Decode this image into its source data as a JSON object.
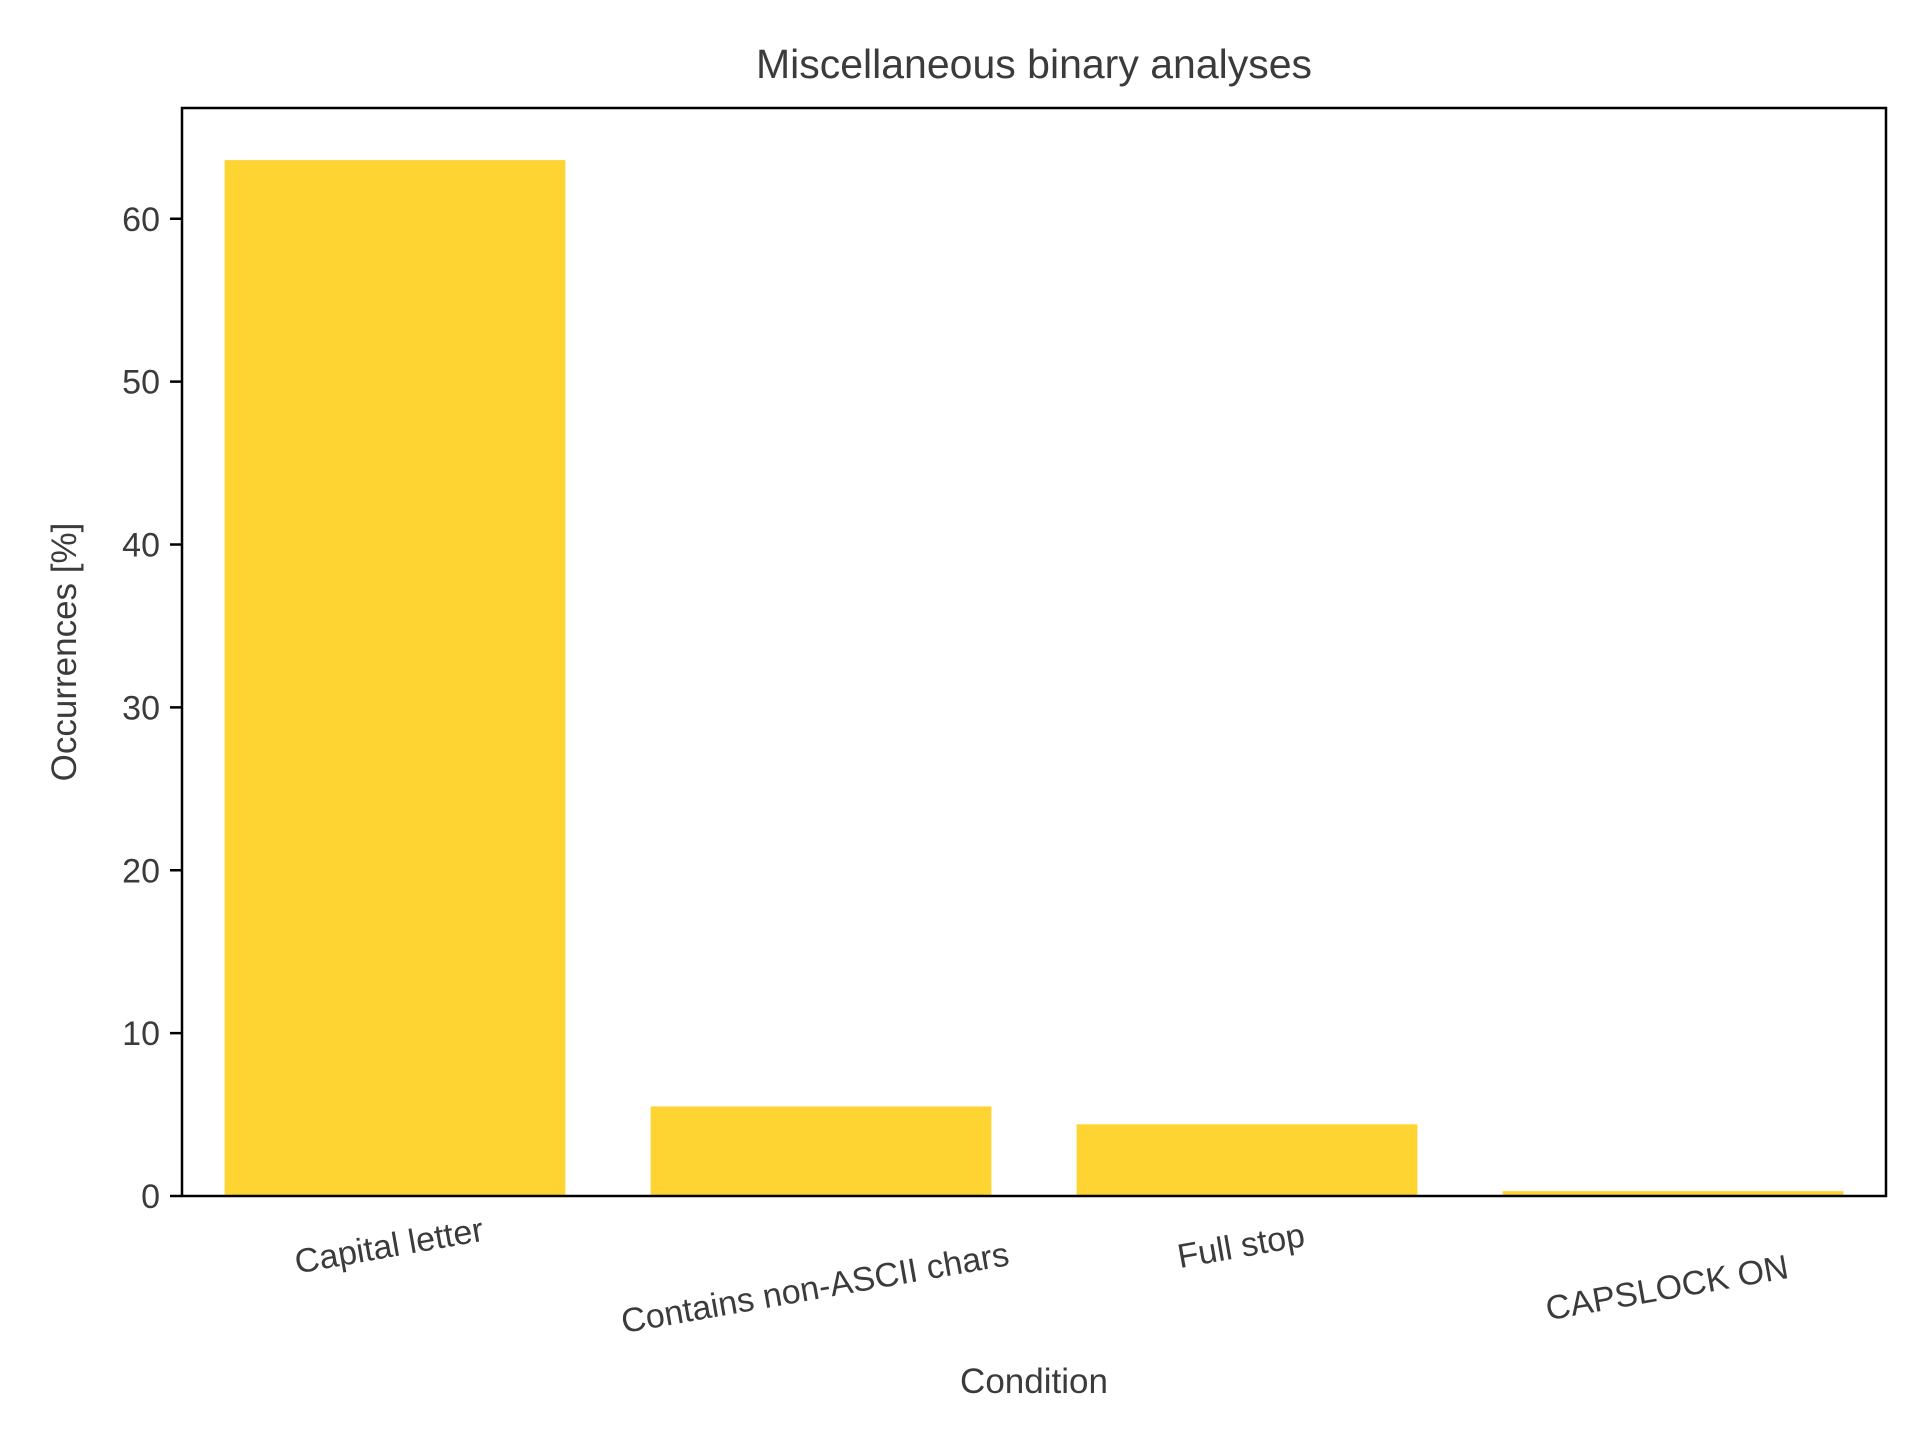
{
  "chart_data": {
    "type": "bar",
    "title": "Miscellaneous binary analyses",
    "xlabel": "Condition",
    "ylabel": "Occurrences [%]",
    "categories": [
      "Capital letter",
      "Contains non-ASCII chars",
      "Full stop",
      "CAPSLOCK ON"
    ],
    "values": [
      63.6,
      5.5,
      4.4,
      0.3
    ],
    "ylim": [
      0,
      66.8
    ],
    "yticks": [
      0,
      10,
      20,
      30,
      40,
      50,
      60
    ],
    "bar_color": "#fdd431",
    "grid": false,
    "legend": "none"
  }
}
